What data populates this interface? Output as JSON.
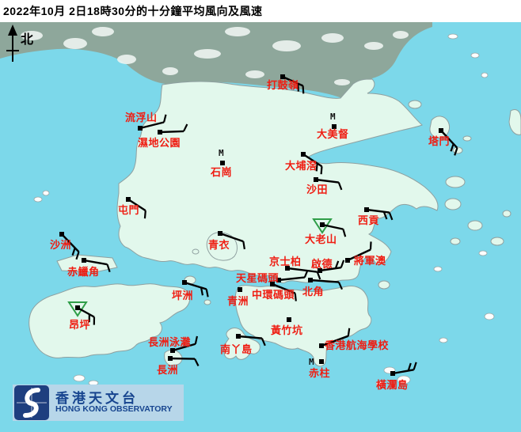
{
  "title": "2022年10月 2日18時30分的十分鐘平均風向及風速",
  "north_label": "北",
  "colors": {
    "sea": "#7cd8ea",
    "land": "#e2f8ec",
    "terrain": "#8ea79b",
    "label_red": "#ef1d12",
    "barb_black": "#000000",
    "triangle_green": "#2f9e48",
    "logo_band": "#b7d6e9",
    "logo_navy": "#1e3f7f",
    "logo_text": "#17458f"
  },
  "logo": {
    "chinese": "香港天文台",
    "english": "HONG KONG OBSERVATORY"
  },
  "stations": [
    {
      "name": "打鼓嶺",
      "dot": [
        357,
        97
      ],
      "label": [
        337,
        100
      ],
      "wind": {
        "dir": 24,
        "len": 28,
        "feathers": 2,
        "side": 1
      }
    },
    {
      "name": "流浮山",
      "dot": [
        177,
        162
      ],
      "label": [
        158,
        141
      ],
      "wind": {
        "dir": -14,
        "len": 31,
        "feathers": 1,
        "side": -1
      }
    },
    {
      "name": "濕地公園",
      "dot": [
        202,
        167
      ],
      "label": [
        174,
        173
      ],
      "wind": {
        "dir": -2,
        "len": 30,
        "feathers": 1,
        "side": -1
      }
    },
    {
      "name": "塔門",
      "dot": [
        557,
        165
      ],
      "label": [
        541,
        171
      ],
      "wind": {
        "dir": 47,
        "len": 30,
        "feathers": 2,
        "side": 1
      }
    },
    {
      "name": "石崗",
      "dot": [
        281,
        206
      ],
      "label": [
        266,
        210
      ],
      "m_offset": [
        -5,
        -9
      ],
      "wind": null
    },
    {
      "name": "大美督",
      "dot": [
        422,
        160
      ],
      "label": [
        400,
        162
      ],
      "m_offset": [
        -5,
        -9
      ],
      "wind": null
    },
    {
      "name": "大埔滘",
      "dot": [
        383,
        195
      ],
      "label": [
        360,
        202
      ],
      "wind": {
        "dir": 33,
        "len": 28,
        "feathers": 2,
        "side": 1
      }
    },
    {
      "name": "沙田",
      "dot": [
        399,
        227
      ],
      "label": [
        387,
        232
      ],
      "wind": {
        "dir": 7,
        "len": 29,
        "feathers": 1,
        "side": 1
      }
    },
    {
      "name": "屯門",
      "dot": [
        162,
        252
      ],
      "label": [
        149,
        258
      ],
      "wind": {
        "dir": 33,
        "len": 26,
        "feathers": 1,
        "side": 1
      }
    },
    {
      "name": "沙洲",
      "dot": [
        78,
        296
      ],
      "label": [
        63,
        302
      ],
      "wind": {
        "dir": 46,
        "len": 31,
        "feathers": 2,
        "side": 1
      }
    },
    {
      "name": "赤鱲角",
      "dot": [
        106,
        329
      ],
      "label": [
        85,
        336
      ],
      "wind": {
        "dir": 10,
        "len": 30,
        "feathers": 1,
        "side": 1
      }
    },
    {
      "name": "青衣",
      "dot": [
        278,
        295
      ],
      "label": [
        263,
        302
      ],
      "wind": {
        "dir": 19,
        "len": 31,
        "feathers": 1,
        "side": 1
      }
    },
    {
      "name": "大老山",
      "dot": [
        407,
        284
      ],
      "label": [
        385,
        295
      ],
      "triangle": true,
      "wind": {
        "dir": 12,
        "len": 27,
        "feathers": 1,
        "side": 1
      }
    },
    {
      "name": "西貢",
      "dot": [
        463,
        265
      ],
      "label": [
        452,
        271
      ],
      "wind": {
        "dir": 7,
        "len": 29,
        "feathers": 2,
        "side": 1
      }
    },
    {
      "name": "將軍澳",
      "dot": [
        439,
        329
      ],
      "label": [
        447,
        322
      ],
      "wind": {
        "dir": -25,
        "len": 32,
        "feathers": 1,
        "side": -1
      }
    },
    {
      "name": "京士柏",
      "dot": [
        363,
        339
      ],
      "label": [
        340,
        323
      ],
      "wind": {
        "dir": 7,
        "len": 38,
        "feathers": 1,
        "side": 1
      }
    },
    {
      "name": "啟德",
      "dot": [
        404,
        342
      ],
      "label": [
        393,
        326
      ],
      "wind": {
        "dir": -8,
        "len": 27,
        "feathers": 2,
        "side": -1
      }
    },
    {
      "name": "北角",
      "dot": [
        392,
        354
      ],
      "label": [
        382,
        361
      ],
      "wind": {
        "dir": 4,
        "len": 36,
        "feathers": 1,
        "side": 1
      }
    },
    {
      "name": "天星碼頭",
      "dot": [
        352,
        354
      ],
      "label": [
        298,
        344
      ],
      "wind": {
        "dir": -6,
        "len": 33,
        "feathers": 1,
        "side": -1
      }
    },
    {
      "name": "中環碼頭",
      "dot": [
        344,
        359
      ],
      "label": [
        318,
        365
      ],
      "wind": {
        "dir": 22,
        "len": 31,
        "feathers": 1,
        "side": 1
      }
    },
    {
      "name": "青洲",
      "dot": [
        303,
        366
      ],
      "label": [
        287,
        373
      ],
      "wind": null
    },
    {
      "name": "坪洲",
      "dot": [
        233,
        357
      ],
      "label": [
        217,
        366
      ],
      "wind": {
        "dir": 17,
        "len": 29,
        "feathers": 2,
        "side": 1
      }
    },
    {
      "name": "黃竹坑",
      "dot": [
        365,
        404
      ],
      "label": [
        342,
        410
      ],
      "wind": null
    },
    {
      "name": "南丫島",
      "dot": [
        301,
        425
      ],
      "label": [
        278,
        434
      ],
      "wind": {
        "dir": 5,
        "len": 30,
        "feathers": 1,
        "side": 1
      }
    },
    {
      "name": "香港航海學校",
      "dot": [
        406,
        437
      ],
      "label": [
        410,
        429
      ],
      "wind": {
        "dir": -20,
        "len": 36,
        "feathers": 1,
        "side": -1
      }
    },
    {
      "name": "赤柱",
      "dot": [
        406,
        457
      ],
      "label": [
        390,
        464
      ],
      "m_offset": [
        -16,
        4
      ],
      "wind": null
    },
    {
      "name": "橫瀾島",
      "dot": [
        496,
        472
      ],
      "label": [
        475,
        479
      ],
      "wind": {
        "dir": -10,
        "len": 27,
        "feathers": 2,
        "side": -1
      }
    },
    {
      "name": "長洲泳灘",
      "dot": [
        218,
        443
      ],
      "label": [
        187,
        425
      ],
      "wind": {
        "dir": -16,
        "len": 30,
        "feathers": 1,
        "side": -1
      }
    },
    {
      "name": "長洲",
      "dot": [
        215,
        453
      ],
      "label": [
        198,
        460
      ],
      "wind": {
        "dir": 1,
        "len": 31,
        "feathers": 1,
        "side": 1
      }
    },
    {
      "name": "昂坪",
      "dot": [
        98,
        389
      ],
      "label": [
        87,
        403
      ],
      "triangle": true,
      "wind": {
        "dir": 29,
        "len": 24,
        "feathers": 2,
        "side": 1
      }
    }
  ]
}
